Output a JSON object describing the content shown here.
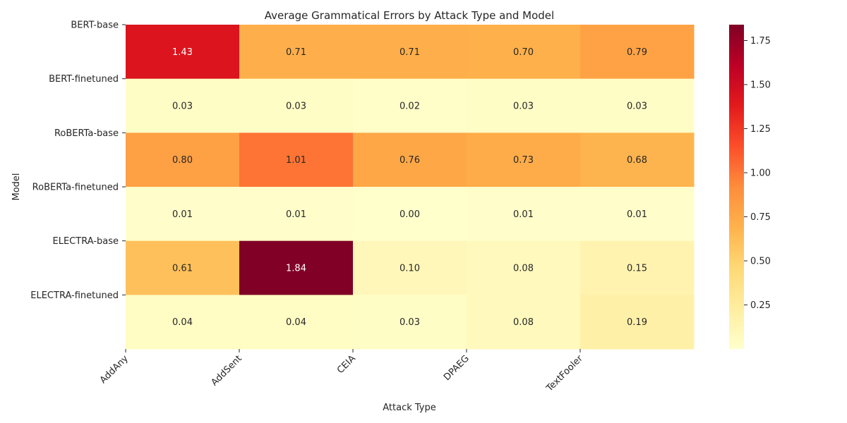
{
  "chart_data": {
    "type": "heatmap",
    "title": "Average Grammatical Errors by Attack Type and Model",
    "xlabel": "Attack Type",
    "ylabel": "Model",
    "x_categories": [
      "AddAny",
      "AddSent",
      "CEIA",
      "DPAEG",
      "TextFooler"
    ],
    "y_categories": [
      "BERT-base",
      "BERT-finetuned",
      "RoBERTa-base",
      "RoBERTa-finetuned",
      "ELECTRA-base",
      "ELECTRA-finetuned"
    ],
    "values": [
      [
        1.43,
        0.71,
        0.71,
        0.7,
        0.79
      ],
      [
        0.03,
        0.03,
        0.02,
        0.03,
        0.03
      ],
      [
        0.8,
        1.01,
        0.76,
        0.73,
        0.68
      ],
      [
        0.01,
        0.01,
        0.0,
        0.01,
        0.01
      ],
      [
        0.61,
        1.84,
        0.1,
        0.08,
        0.15
      ],
      [
        0.04,
        0.04,
        0.03,
        0.08,
        0.19
      ]
    ],
    "value_labels": [
      [
        "1.43",
        "0.71",
        "0.71",
        "0.70",
        "0.79"
      ],
      [
        "0.03",
        "0.03",
        "0.02",
        "0.03",
        "0.03"
      ],
      [
        "0.80",
        "1.01",
        "0.76",
        "0.73",
        "0.68"
      ],
      [
        "0.01",
        "0.01",
        "0.00",
        "0.01",
        "0.01"
      ],
      [
        "0.61",
        "1.84",
        "0.10",
        "0.08",
        "0.15"
      ],
      [
        "0.04",
        "0.04",
        "0.03",
        "0.08",
        "0.19"
      ]
    ],
    "colormap": "YlOrRd",
    "colormap_stops": [
      "#ffffcc",
      "#ffeda0",
      "#fed976",
      "#feb24c",
      "#fd8d3c",
      "#fc4e2a",
      "#e31a1c",
      "#bd0026",
      "#800026"
    ],
    "vmin": 0.0,
    "vmax": 1.84,
    "colorbar_ticks": [
      0.25,
      0.5,
      0.75,
      1.0,
      1.25,
      1.5,
      1.75
    ],
    "colorbar_tick_labels": [
      "0.25",
      "0.50",
      "0.75",
      "1.00",
      "1.25",
      "1.50",
      "1.75"
    ],
    "grid": false,
    "legend": "colorbar-right"
  }
}
